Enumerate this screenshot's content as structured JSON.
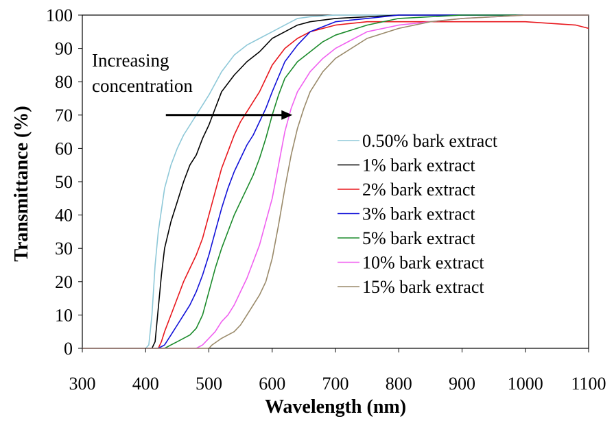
{
  "chart_data": {
    "type": "line",
    "title": "",
    "xlabel": "Wavelength (nm)",
    "ylabel": "Transmittance (%)",
    "xlim": [
      300,
      1100
    ],
    "ylim": [
      0,
      100
    ],
    "xticks": [
      300,
      400,
      500,
      600,
      700,
      800,
      900,
      1000,
      1100
    ],
    "yticks": [
      0,
      10,
      20,
      30,
      40,
      50,
      60,
      70,
      80,
      90,
      100
    ],
    "grid": false,
    "legend_position": "center-right",
    "annotation": {
      "lines": [
        "Increasing",
        "concentration"
      ],
      "arrow_from": [
        432,
        70
      ],
      "arrow_to": [
        632,
        70
      ]
    },
    "series": [
      {
        "name": "0.50% bark extract",
        "color": "#8ec8d8",
        "points": [
          [
            300,
            0
          ],
          [
            400,
            0
          ],
          [
            405,
            1
          ],
          [
            410,
            10
          ],
          [
            415,
            25
          ],
          [
            420,
            35
          ],
          [
            430,
            48
          ],
          [
            440,
            55
          ],
          [
            450,
            60
          ],
          [
            460,
            64
          ],
          [
            480,
            70
          ],
          [
            500,
            76
          ],
          [
            520,
            83
          ],
          [
            540,
            88
          ],
          [
            560,
            91
          ],
          [
            580,
            93
          ],
          [
            600,
            95
          ],
          [
            620,
            97
          ],
          [
            640,
            99
          ],
          [
            660,
            99.5
          ],
          [
            700,
            100
          ],
          [
            1100,
            100
          ]
        ]
      },
      {
        "name": "1% bark extract",
        "color": "#000000",
        "points": [
          [
            300,
            0
          ],
          [
            410,
            0
          ],
          [
            415,
            2
          ],
          [
            420,
            12
          ],
          [
            425,
            22
          ],
          [
            430,
            30
          ],
          [
            440,
            38
          ],
          [
            450,
            44
          ],
          [
            460,
            50
          ],
          [
            470,
            55
          ],
          [
            480,
            58
          ],
          [
            490,
            63
          ],
          [
            500,
            67
          ],
          [
            510,
            72
          ],
          [
            520,
            77
          ],
          [
            540,
            82
          ],
          [
            560,
            86
          ],
          [
            580,
            89
          ],
          [
            600,
            93
          ],
          [
            620,
            95
          ],
          [
            640,
            97
          ],
          [
            660,
            98
          ],
          [
            700,
            99
          ],
          [
            800,
            100
          ],
          [
            1100,
            100
          ]
        ]
      },
      {
        "name": "2% bark extract",
        "color": "#e8161c",
        "points": [
          [
            300,
            0
          ],
          [
            420,
            0
          ],
          [
            425,
            2
          ],
          [
            430,
            5
          ],
          [
            440,
            10
          ],
          [
            450,
            15
          ],
          [
            460,
            20
          ],
          [
            470,
            24
          ],
          [
            480,
            28
          ],
          [
            490,
            33
          ],
          [
            500,
            40
          ],
          [
            510,
            47
          ],
          [
            520,
            54
          ],
          [
            530,
            59
          ],
          [
            540,
            64
          ],
          [
            550,
            68
          ],
          [
            560,
            71
          ],
          [
            580,
            77
          ],
          [
            600,
            85
          ],
          [
            620,
            90
          ],
          [
            640,
            93
          ],
          [
            660,
            95
          ],
          [
            700,
            97
          ],
          [
            750,
            98
          ],
          [
            800,
            98
          ],
          [
            1000,
            98
          ],
          [
            1080,
            97
          ],
          [
            1100,
            96
          ]
        ]
      },
      {
        "name": "3% bark extract",
        "color": "#1010d8",
        "points": [
          [
            300,
            0
          ],
          [
            420,
            0
          ],
          [
            430,
            1
          ],
          [
            440,
            4
          ],
          [
            450,
            7
          ],
          [
            460,
            10
          ],
          [
            470,
            13
          ],
          [
            480,
            17
          ],
          [
            490,
            22
          ],
          [
            500,
            28
          ],
          [
            510,
            35
          ],
          [
            520,
            42
          ],
          [
            530,
            48
          ],
          [
            540,
            53
          ],
          [
            550,
            57
          ],
          [
            560,
            61
          ],
          [
            570,
            64
          ],
          [
            580,
            68
          ],
          [
            590,
            72
          ],
          [
            600,
            77
          ],
          [
            620,
            86
          ],
          [
            640,
            91
          ],
          [
            660,
            95
          ],
          [
            700,
            98
          ],
          [
            750,
            99
          ],
          [
            800,
            100
          ],
          [
            1100,
            100
          ]
        ]
      },
      {
        "name": "5% bark extract",
        "color": "#1a8a2a",
        "points": [
          [
            300,
            0
          ],
          [
            430,
            0
          ],
          [
            440,
            1
          ],
          [
            450,
            2
          ],
          [
            460,
            3
          ],
          [
            470,
            4
          ],
          [
            480,
            6
          ],
          [
            490,
            10
          ],
          [
            500,
            17
          ],
          [
            510,
            24
          ],
          [
            520,
            30
          ],
          [
            530,
            35
          ],
          [
            540,
            40
          ],
          [
            550,
            44
          ],
          [
            560,
            48
          ],
          [
            570,
            52
          ],
          [
            580,
            57
          ],
          [
            590,
            63
          ],
          [
            600,
            70
          ],
          [
            610,
            76
          ],
          [
            620,
            81
          ],
          [
            640,
            86
          ],
          [
            660,
            89
          ],
          [
            680,
            92
          ],
          [
            700,
            94
          ],
          [
            750,
            97
          ],
          [
            800,
            99
          ],
          [
            900,
            100
          ],
          [
            1100,
            100
          ]
        ]
      },
      {
        "name": "10% bark extract",
        "color": "#f060f0",
        "points": [
          [
            300,
            0
          ],
          [
            480,
            0
          ],
          [
            490,
            1
          ],
          [
            500,
            3
          ],
          [
            510,
            5
          ],
          [
            520,
            8
          ],
          [
            530,
            10
          ],
          [
            540,
            13
          ],
          [
            550,
            17
          ],
          [
            560,
            21
          ],
          [
            570,
            26
          ],
          [
            580,
            31
          ],
          [
            590,
            38
          ],
          [
            600,
            45
          ],
          [
            610,
            55
          ],
          [
            620,
            65
          ],
          [
            630,
            72
          ],
          [
            640,
            77
          ],
          [
            650,
            80
          ],
          [
            660,
            83
          ],
          [
            680,
            87
          ],
          [
            700,
            90
          ],
          [
            750,
            95
          ],
          [
            800,
            97
          ],
          [
            850,
            98
          ],
          [
            900,
            99
          ],
          [
            1000,
            100
          ],
          [
            1100,
            100
          ]
        ]
      },
      {
        "name": "15% bark extract",
        "color": "#9a8a6a",
        "points": [
          [
            300,
            0
          ],
          [
            500,
            0
          ],
          [
            505,
            1
          ],
          [
            520,
            3
          ],
          [
            530,
            4
          ],
          [
            540,
            5
          ],
          [
            550,
            7
          ],
          [
            560,
            10
          ],
          [
            570,
            13
          ],
          [
            580,
            16
          ],
          [
            590,
            20
          ],
          [
            600,
            27
          ],
          [
            610,
            37
          ],
          [
            620,
            48
          ],
          [
            630,
            58
          ],
          [
            640,
            66
          ],
          [
            650,
            72
          ],
          [
            660,
            77
          ],
          [
            680,
            83
          ],
          [
            700,
            87
          ],
          [
            750,
            93
          ],
          [
            800,
            96
          ],
          [
            850,
            98
          ],
          [
            900,
            99
          ],
          [
            1000,
            100
          ],
          [
            1100,
            100
          ]
        ]
      }
    ]
  }
}
